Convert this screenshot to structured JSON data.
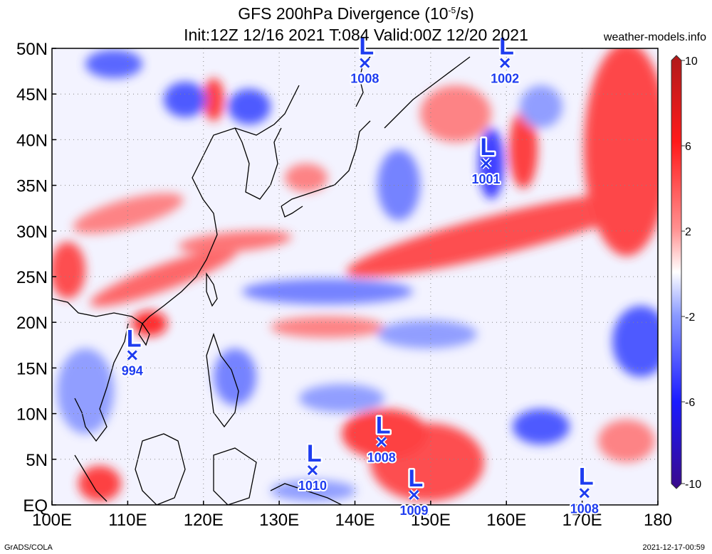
{
  "title": {
    "line1_prefix": "GFS 200hPa Divergence (10",
    "line1_exp": "-5",
    "line1_suffix": "/s)",
    "line2": "Init:12Z 12/16 2021 T:084 Valid:00Z 12/20 2021"
  },
  "site": "weather-models.info",
  "credit_left": "GrADS/COLA",
  "credit_right": "2021-12-17-00:59",
  "map": {
    "lon_range": [
      100,
      180
    ],
    "lat_range": [
      0,
      50
    ],
    "lon_ticks": [
      "100E",
      "110E",
      "120E",
      "130E",
      "140E",
      "150E",
      "160E",
      "170E",
      "180"
    ],
    "lat_ticks": [
      "EQ",
      "5N",
      "10N",
      "15N",
      "20N",
      "25N",
      "30N",
      "35N",
      "40N",
      "45N",
      "50N"
    ],
    "gridlines": "dotted",
    "colorbar": {
      "labels": [
        "10",
        "6",
        "2",
        "-2",
        "-6",
        "-10"
      ],
      "range": [
        -10,
        10
      ],
      "colors": [
        "#3a0a8a",
        "#1a1aff",
        "#7e8cff",
        "#ffffff",
        "#ff8080",
        "#ff1a1a",
        "#b01a1a"
      ]
    },
    "lows": [
      {
        "lon": 141.3,
        "lat": 48.4,
        "pressure": "1008"
      },
      {
        "lon": 159.8,
        "lat": 48.4,
        "pressure": "1002"
      },
      {
        "lon": 157.3,
        "lat": 37.4,
        "pressure": "1001"
      },
      {
        "lon": 110.6,
        "lat": 16.4,
        "pressure": "994"
      },
      {
        "lon": 143.5,
        "lat": 6.9,
        "pressure": "1008"
      },
      {
        "lon": 134.4,
        "lat": 3.8,
        "pressure": "1010"
      },
      {
        "lon": 147.8,
        "lat": 1.1,
        "pressure": "1009"
      },
      {
        "lon": 170.3,
        "lat": 1.3,
        "pressure": "1008"
      }
    ]
  }
}
